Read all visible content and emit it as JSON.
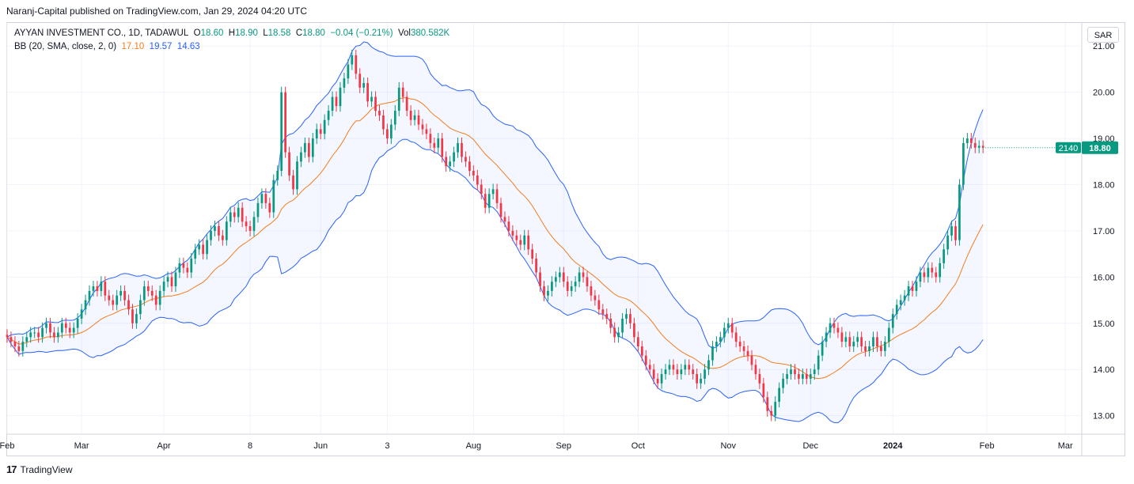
{
  "header": {
    "published": "Naranj-Capital published on TradingView.com, Jan 29, 2024 04:20 UTC"
  },
  "legend": {
    "symbol": "AYYAN INVESTMENT CO., 1D, TADAWUL",
    "o_label": "O",
    "o_value": "18.60",
    "h_label": "H",
    "h_value": "18.90",
    "l_label": "L",
    "l_value": "18.58",
    "c_label": "C",
    "c_value": "18.80",
    "change": "−0.04 (−0.21%)",
    "vol_label": "Vol",
    "vol_value": "380.582K",
    "bb_label": "BB (20, SMA, close, 2, 0)",
    "bb_mid": "17.10",
    "bb_upper": "19.57",
    "bb_lower": "14.63"
  },
  "currency_button": "SAR",
  "price_tag": {
    "countdown": "2140",
    "price": "18.80"
  },
  "footer": {
    "brand": "TradingView",
    "logo": "17"
  },
  "colors": {
    "up": "#089981",
    "down": "#f23645",
    "basis": "#f57c1f",
    "band": "#2962ff",
    "band_fill": "#2962ff0d",
    "grid": "#f0f3fa",
    "text": "#131722"
  },
  "chart_data": {
    "type": "candlestick",
    "title": "AYYAN INVESTMENT CO., 1D, TADAWUL",
    "indicator": "BB (20, SMA, close, 2, 0)",
    "ylim": [
      12.6,
      21.5
    ],
    "y_ticks": [
      "21.00",
      "20.00",
      "19.00",
      "18.00",
      "17.00",
      "16.00",
      "15.00",
      "14.00",
      "13.00"
    ],
    "y_tick_values": [
      21,
      20,
      19,
      18,
      17,
      16,
      15,
      14,
      13
    ],
    "x_ticks": [
      {
        "label": "Feb",
        "t": 0
      },
      {
        "label": "Mar",
        "t": 19
      },
      {
        "label": "Apr",
        "t": 40
      },
      {
        "label": "8",
        "t": 62
      },
      {
        "label": "Jun",
        "t": 80
      },
      {
        "label": "3",
        "t": 97
      },
      {
        "label": "Aug",
        "t": 119
      },
      {
        "label": "Sep",
        "t": 142
      },
      {
        "label": "Oct",
        "t": 161
      },
      {
        "label": "Nov",
        "t": 184
      },
      {
        "label": "Dec",
        "t": 205
      },
      {
        "label": "2024",
        "t": 226,
        "bold": true
      },
      {
        "label": "Feb",
        "t": 250
      },
      {
        "label": "Mar",
        "t": 270
      }
    ],
    "x_range": [
      0,
      274
    ],
    "close": [
      14.7,
      14.6,
      14.5,
      14.4,
      14.6,
      14.7,
      14.8,
      14.8,
      14.7,
      14.9,
      15.0,
      14.8,
      14.7,
      14.8,
      15.0,
      14.9,
      14.8,
      14.9,
      15.1,
      15.3,
      15.5,
      15.7,
      15.8,
      15.7,
      15.9,
      15.6,
      15.5,
      15.4,
      15.6,
      15.7,
      15.5,
      15.3,
      15.0,
      15.2,
      15.5,
      15.8,
      15.7,
      15.6,
      15.4,
      15.7,
      15.9,
      16.0,
      15.8,
      16.1,
      16.3,
      16.2,
      16.1,
      16.4,
      16.6,
      16.7,
      16.5,
      16.8,
      17.0,
      17.1,
      16.9,
      16.8,
      17.2,
      17.4,
      17.3,
      17.5,
      17.2,
      17.1,
      17.0,
      17.3,
      17.6,
      17.8,
      17.6,
      17.4,
      18.1,
      18.3,
      20.0,
      18.7,
      18.2,
      17.9,
      18.5,
      18.7,
      18.9,
      18.6,
      19.0,
      19.2,
      19.1,
      19.4,
      19.6,
      19.9,
      19.7,
      20.1,
      20.3,
      20.6,
      20.8,
      20.4,
      20.1,
      20.2,
      19.8,
      19.9,
      19.6,
      19.5,
      19.2,
      19.0,
      19.3,
      19.6,
      20.1,
      19.9,
      19.6,
      19.4,
      19.5,
      19.3,
      19.2,
      19.1,
      18.9,
      18.8,
      19.0,
      18.6,
      18.4,
      18.5,
      18.7,
      18.9,
      18.6,
      18.5,
      18.3,
      18.2,
      18.0,
      17.8,
      17.5,
      17.8,
      17.9,
      17.6,
      17.3,
      17.2,
      17.0,
      16.9,
      16.8,
      16.7,
      16.9,
      16.6,
      16.4,
      16.1,
      15.8,
      15.6,
      15.7,
      15.9,
      16.0,
      16.1,
      15.9,
      15.7,
      15.8,
      15.9,
      16.1,
      16.0,
      15.8,
      15.6,
      15.5,
      15.3,
      15.2,
      15.1,
      14.9,
      14.7,
      14.8,
      15.1,
      15.2,
      15.0,
      14.7,
      14.5,
      14.3,
      14.1,
      14.0,
      13.8,
      13.7,
      13.9,
      14.0,
      14.1,
      14.0,
      13.9,
      14.0,
      14.1,
      14.0,
      13.9,
      13.7,
      13.8,
      14.0,
      14.2,
      14.5,
      14.6,
      14.7,
      14.9,
      15.0,
      14.8,
      14.6,
      14.5,
      14.4,
      14.3,
      14.1,
      13.9,
      13.7,
      13.4,
      13.1,
      13.0,
      13.3,
      13.6,
      13.8,
      13.9,
      14.0,
      13.9,
      13.8,
      13.9,
      13.8,
      13.9,
      14.0,
      14.3,
      14.6,
      14.8,
      15.0,
      14.9,
      14.8,
      14.6,
      14.7,
      14.5,
      14.6,
      14.7,
      14.5,
      14.4,
      14.5,
      14.7,
      14.5,
      14.4,
      14.6,
      14.9,
      15.2,
      15.4,
      15.5,
      15.6,
      15.8,
      15.7,
      15.9,
      16.1,
      16.0,
      16.2,
      16.1,
      16.0,
      16.3,
      16.6,
      16.9,
      17.1,
      16.8,
      18.0,
      18.9,
      19.0,
      18.9,
      18.8,
      18.84,
      18.8
    ],
    "bb_basis_last": 17.1,
    "bb_upper_last": 19.57,
    "bb_lower_last": 14.63,
    "last_price": 18.8
  }
}
